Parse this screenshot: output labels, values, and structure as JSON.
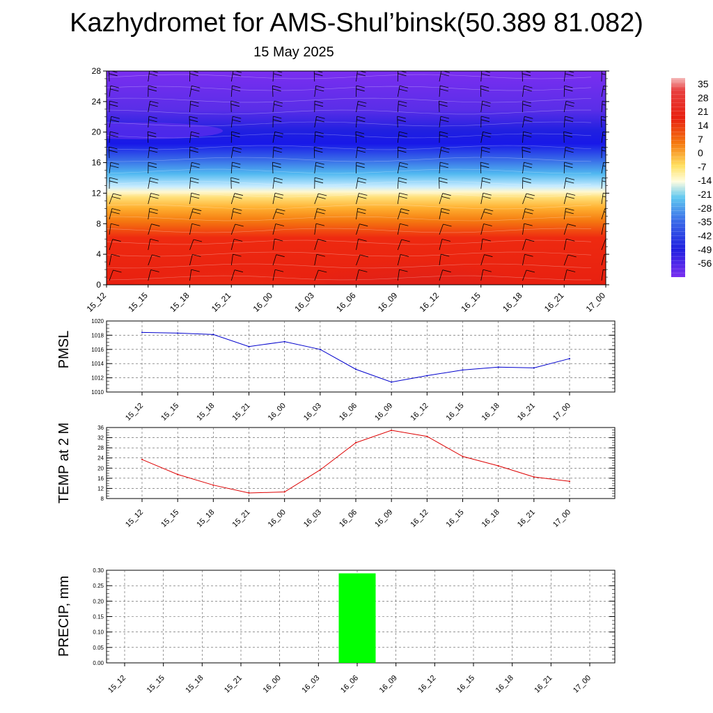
{
  "title": "Kazhydromet for AMS-Shul’binsk(50.389 81.082)",
  "subtitle": "15 May 2025",
  "time_labels": [
    "15_12",
    "15_15",
    "15_18",
    "15_21",
    "16_00",
    "16_03",
    "16_06",
    "16_09",
    "16_12",
    "16_15",
    "16_18",
    "16_21",
    "17_00"
  ],
  "chart_data": [
    {
      "type": "heatmap",
      "name": "vertical-temperature-section",
      "x": [
        "15_12",
        "15_15",
        "15_18",
        "15_21",
        "16_00",
        "16_03",
        "16_06",
        "16_09",
        "16_12",
        "16_15",
        "16_18",
        "16_21",
        "17_00"
      ],
      "y_ticks": [
        0,
        4,
        8,
        12,
        16,
        20,
        24,
        28
      ],
      "ylim": [
        0,
        28
      ],
      "colorbar_ticks": [
        35,
        28,
        21,
        14,
        7,
        0,
        -7,
        -14,
        -21,
        -28,
        -35,
        -42,
        -49,
        -56
      ],
      "colorbar_range": [
        -63,
        38
      ]
    },
    {
      "type": "line",
      "name": "pmsl",
      "ylabel": "PMSL",
      "color": "#0000cc",
      "x": [
        "15_12",
        "15_15",
        "15_18",
        "15_21",
        "16_00",
        "16_03",
        "16_06",
        "16_09",
        "16_12",
        "16_15",
        "16_18",
        "16_21",
        "17_00"
      ],
      "values": [
        1018.4,
        1018.3,
        1018.1,
        1016.4,
        1017.1,
        1016.0,
        1013.2,
        1011.4,
        1012.3,
        1013.1,
        1013.5,
        1013.4,
        1014.7
      ],
      "ylim": [
        1010,
        1020
      ],
      "y_ticks": [
        1010,
        1012,
        1014,
        1016,
        1018,
        1020
      ]
    },
    {
      "type": "line",
      "name": "temp-2m",
      "ylabel": "TEMP at 2 M",
      "color": "#dd0000",
      "x": [
        "15_12",
        "15_15",
        "15_18",
        "15_21",
        "16_00",
        "16_03",
        "16_06",
        "16_09",
        "16_12",
        "16_15",
        "16_18",
        "16_21",
        "17_00"
      ],
      "values": [
        23.4,
        17.5,
        13.3,
        10.2,
        10.6,
        19.3,
        30.0,
        34.9,
        32.5,
        24.6,
        20.9,
        16.5,
        14.8
      ],
      "ylim": [
        8,
        36
      ],
      "y_ticks": [
        8,
        12,
        16,
        20,
        24,
        28,
        32,
        36
      ]
    },
    {
      "type": "bar",
      "name": "precip",
      "ylabel": "PRECIP, mm",
      "color": "#00ff00",
      "x": [
        "15_12",
        "15_15",
        "15_18",
        "15_21",
        "16_00",
        "16_03",
        "16_06",
        "16_09",
        "16_12",
        "16_15",
        "16_18",
        "16_21",
        "17_00"
      ],
      "values": [
        0,
        0,
        0,
        0,
        0,
        0,
        0.29,
        0,
        0,
        0,
        0,
        0,
        0
      ],
      "ylim": [
        0,
        0.3
      ],
      "y_ticks": [
        "0.00",
        "0.05",
        "0.10",
        "0.15",
        "0.20",
        "0.25",
        "0.30"
      ]
    }
  ]
}
